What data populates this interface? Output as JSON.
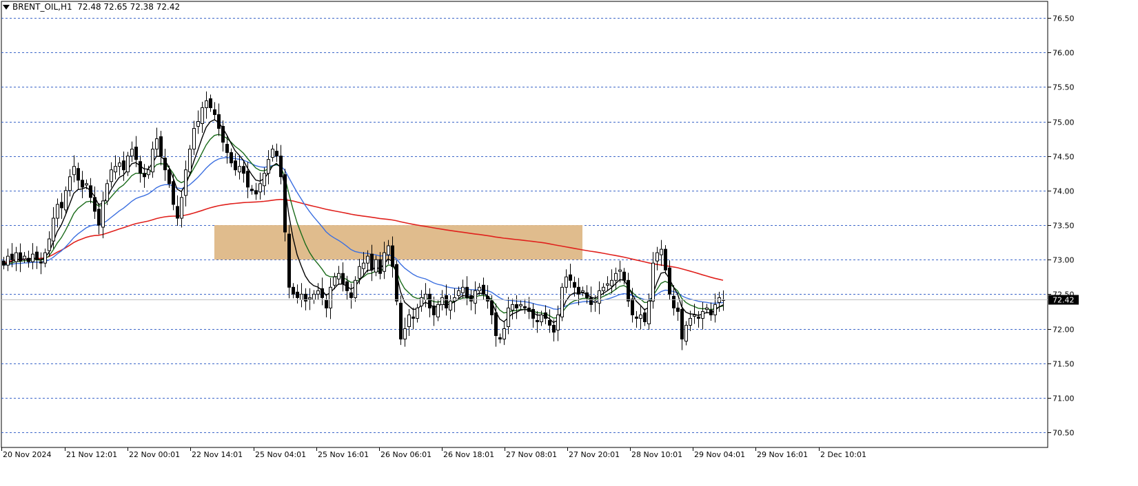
{
  "header": {
    "symbol": "BRENT_OIL,H1",
    "ohlc": "72.48 72.65 72.38 72.42"
  },
  "colors": {
    "background": "#ffffff",
    "grid": "#3a64c8",
    "candle_outline": "#000000",
    "bull_fill": "#ffffff",
    "bear_fill": "#000000",
    "ma_fast": "#000000",
    "ma_mid": "#1a6b1a",
    "ma_slow": "#3b6fe0",
    "ma_long": "#e0201c",
    "zone": "#deb887",
    "price_tag_bg": "#000000",
    "price_tag_text": "#ffffff"
  },
  "chart_data": {
    "type": "candlestick",
    "grid": true,
    "y_ticks": [
      "76.50",
      "76.00",
      "75.50",
      "75.00",
      "74.50",
      "74.00",
      "73.50",
      "73.00",
      "72.50",
      "72.00",
      "71.50",
      "71.00",
      "70.50"
    ],
    "y_range": [
      70.5,
      76.5
    ],
    "x_ticks": [
      "20 Nov 2024",
      "21 Nov 12:01",
      "22 Nov 00:01",
      "22 Nov 14:01",
      "25 Nov 04:01",
      "25 Nov 16:01",
      "26 Nov 06:01",
      "26 Nov 18:01",
      "27 Nov 08:01",
      "27 Nov 20:01",
      "28 Nov 10:01",
      "29 Nov 04:01",
      "29 Nov 16:01",
      "2 Dec 10:01"
    ],
    "current_price": "72.42",
    "zone": {
      "low": 73.0,
      "high": 73.5,
      "start_index": 51,
      "end_index": 140
    },
    "closes": [
      72.92,
      73.05,
      73.0,
      73.1,
      72.98,
      73.05,
      72.97,
      73.08,
      73.0,
      72.95,
      73.1,
      73.3,
      73.6,
      73.8,
      73.75,
      74.0,
      74.2,
      74.35,
      74.15,
      74.05,
      74.1,
      73.9,
      73.7,
      73.5,
      73.85,
      74.1,
      74.3,
      74.35,
      74.4,
      74.3,
      74.5,
      74.6,
      74.45,
      74.25,
      74.2,
      74.3,
      74.6,
      74.75,
      74.5,
      74.3,
      74.1,
      73.8,
      73.6,
      73.9,
      74.3,
      74.6,
      74.9,
      75.0,
      75.2,
      75.3,
      75.2,
      75.1,
      74.9,
      74.7,
      74.55,
      74.4,
      74.3,
      74.35,
      74.25,
      74.05,
      74.0,
      73.95,
      74.1,
      74.25,
      74.45,
      74.6,
      74.5,
      74.2,
      73.4,
      72.6,
      72.5,
      72.45,
      72.5,
      72.4,
      72.45,
      72.5,
      72.55,
      72.45,
      72.3,
      72.6,
      72.75,
      72.8,
      72.65,
      72.55,
      72.45,
      72.7,
      72.9,
      72.95,
      73.05,
      72.85,
      73.0,
      72.8,
      73.1,
      73.2,
      72.9,
      72.4,
      71.85,
      72.0,
      72.2,
      72.15,
      72.3,
      72.45,
      72.5,
      72.3,
      72.2,
      72.35,
      72.45,
      72.3,
      72.4,
      72.45,
      72.55,
      72.6,
      72.45,
      72.4,
      72.55,
      72.6,
      72.5,
      72.4,
      72.2,
      71.9,
      71.85,
      72.0,
      72.3,
      72.35,
      72.3,
      72.35,
      72.3,
      72.25,
      72.15,
      72.1,
      72.2,
      72.15,
      72.05,
      71.95,
      72.2,
      72.6,
      72.75,
      72.7,
      72.6,
      72.5,
      72.55,
      72.45,
      72.35,
      72.4,
      72.55,
      72.6,
      72.65,
      72.7,
      72.8,
      72.85,
      72.7,
      72.4,
      72.2,
      72.15,
      72.2,
      72.1,
      72.4,
      72.95,
      73.1,
      73.15,
      72.85,
      72.5,
      72.3,
      72.25,
      71.85,
      72.05,
      72.15,
      72.2,
      72.15,
      72.25,
      72.3,
      72.2,
      72.35,
      72.45,
      72.42
    ]
  }
}
